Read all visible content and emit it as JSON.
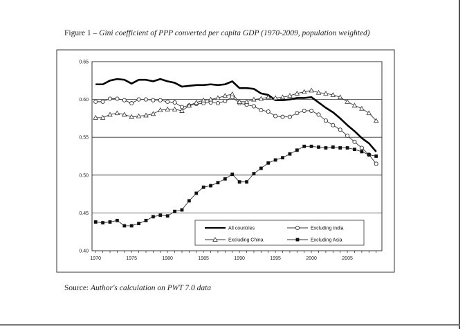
{
  "figure": {
    "caption_prefix": "Figure 1 – ",
    "caption_title": "Gini coefficient of PPP converted per capita GDP (1970-2009, population weighted)",
    "source_prefix": "Source: ",
    "source_text": "Author's calculation on PWT 7.0 data"
  },
  "chart_data": {
    "type": "line",
    "title": "",
    "xlabel": "",
    "ylabel": "",
    "xlim": [
      1969.5,
      2009.8
    ],
    "ylim": [
      0.4,
      0.65
    ],
    "y_ticks": [
      "0.40",
      "0.45",
      "0.50",
      "0.55",
      "0.60",
      "0.65"
    ],
    "x_ticks": [
      "1970",
      "1975",
      "1980",
      "1985",
      "1990",
      "1995",
      "2000",
      "2005"
    ],
    "grid": "horizontal",
    "legend_position": "bottom-right",
    "x": [
      1970,
      1971,
      1972,
      1973,
      1974,
      1975,
      1976,
      1977,
      1978,
      1979,
      1980,
      1981,
      1982,
      1983,
      1984,
      1985,
      1986,
      1987,
      1988,
      1989,
      1990,
      1991,
      1992,
      1993,
      1994,
      1995,
      1996,
      1997,
      1998,
      1999,
      2000,
      2001,
      2002,
      2003,
      2004,
      2005,
      2006,
      2007,
      2008,
      2009
    ],
    "series": [
      {
        "name": "All countries",
        "marker": "none",
        "values": [
          0.62,
          0.62,
          0.625,
          0.627,
          0.626,
          0.621,
          0.626,
          0.626,
          0.624,
          0.627,
          0.624,
          0.622,
          0.617,
          0.618,
          0.619,
          0.619,
          0.62,
          0.619,
          0.62,
          0.624,
          0.615,
          0.615,
          0.614,
          0.608,
          0.606,
          0.599,
          0.599,
          0.6,
          0.602,
          0.602,
          0.603,
          0.596,
          0.589,
          0.583,
          0.575,
          0.566,
          0.558,
          0.549,
          0.542,
          0.531
        ]
      },
      {
        "name": "Excluding India",
        "marker": "circle",
        "values": [
          0.597,
          0.597,
          0.601,
          0.601,
          0.599,
          0.595,
          0.6,
          0.6,
          0.599,
          0.599,
          0.597,
          0.596,
          0.59,
          0.592,
          0.594,
          0.595,
          0.596,
          0.595,
          0.598,
          0.603,
          0.595,
          0.593,
          0.591,
          0.586,
          0.584,
          0.578,
          0.577,
          0.577,
          0.582,
          0.585,
          0.585,
          0.58,
          0.572,
          0.566,
          0.56,
          0.552,
          0.544,
          0.536,
          0.527,
          0.515
        ]
      },
      {
        "name": "Excluding China",
        "marker": "triangle",
        "values": [
          0.576,
          0.576,
          0.58,
          0.582,
          0.58,
          0.577,
          0.578,
          0.579,
          0.581,
          0.586,
          0.587,
          0.587,
          0.585,
          0.592,
          0.596,
          0.599,
          0.6,
          0.602,
          0.605,
          0.607,
          0.597,
          0.597,
          0.6,
          0.601,
          0.603,
          0.602,
          0.603,
          0.605,
          0.608,
          0.61,
          0.612,
          0.609,
          0.608,
          0.606,
          0.603,
          0.597,
          0.592,
          0.588,
          0.582,
          0.572
        ]
      },
      {
        "name": "Excluding Asia",
        "marker": "square",
        "values": [
          0.438,
          0.437,
          0.438,
          0.44,
          0.433,
          0.433,
          0.436,
          0.44,
          0.445,
          0.447,
          0.446,
          0.452,
          0.454,
          0.466,
          0.476,
          0.484,
          0.486,
          0.49,
          0.495,
          0.501,
          0.491,
          0.491,
          0.502,
          0.509,
          0.516,
          0.52,
          0.523,
          0.528,
          0.533,
          0.538,
          0.538,
          0.537,
          0.536,
          0.537,
          0.536,
          0.536,
          0.534,
          0.531,
          0.527,
          0.525
        ]
      }
    ]
  }
}
